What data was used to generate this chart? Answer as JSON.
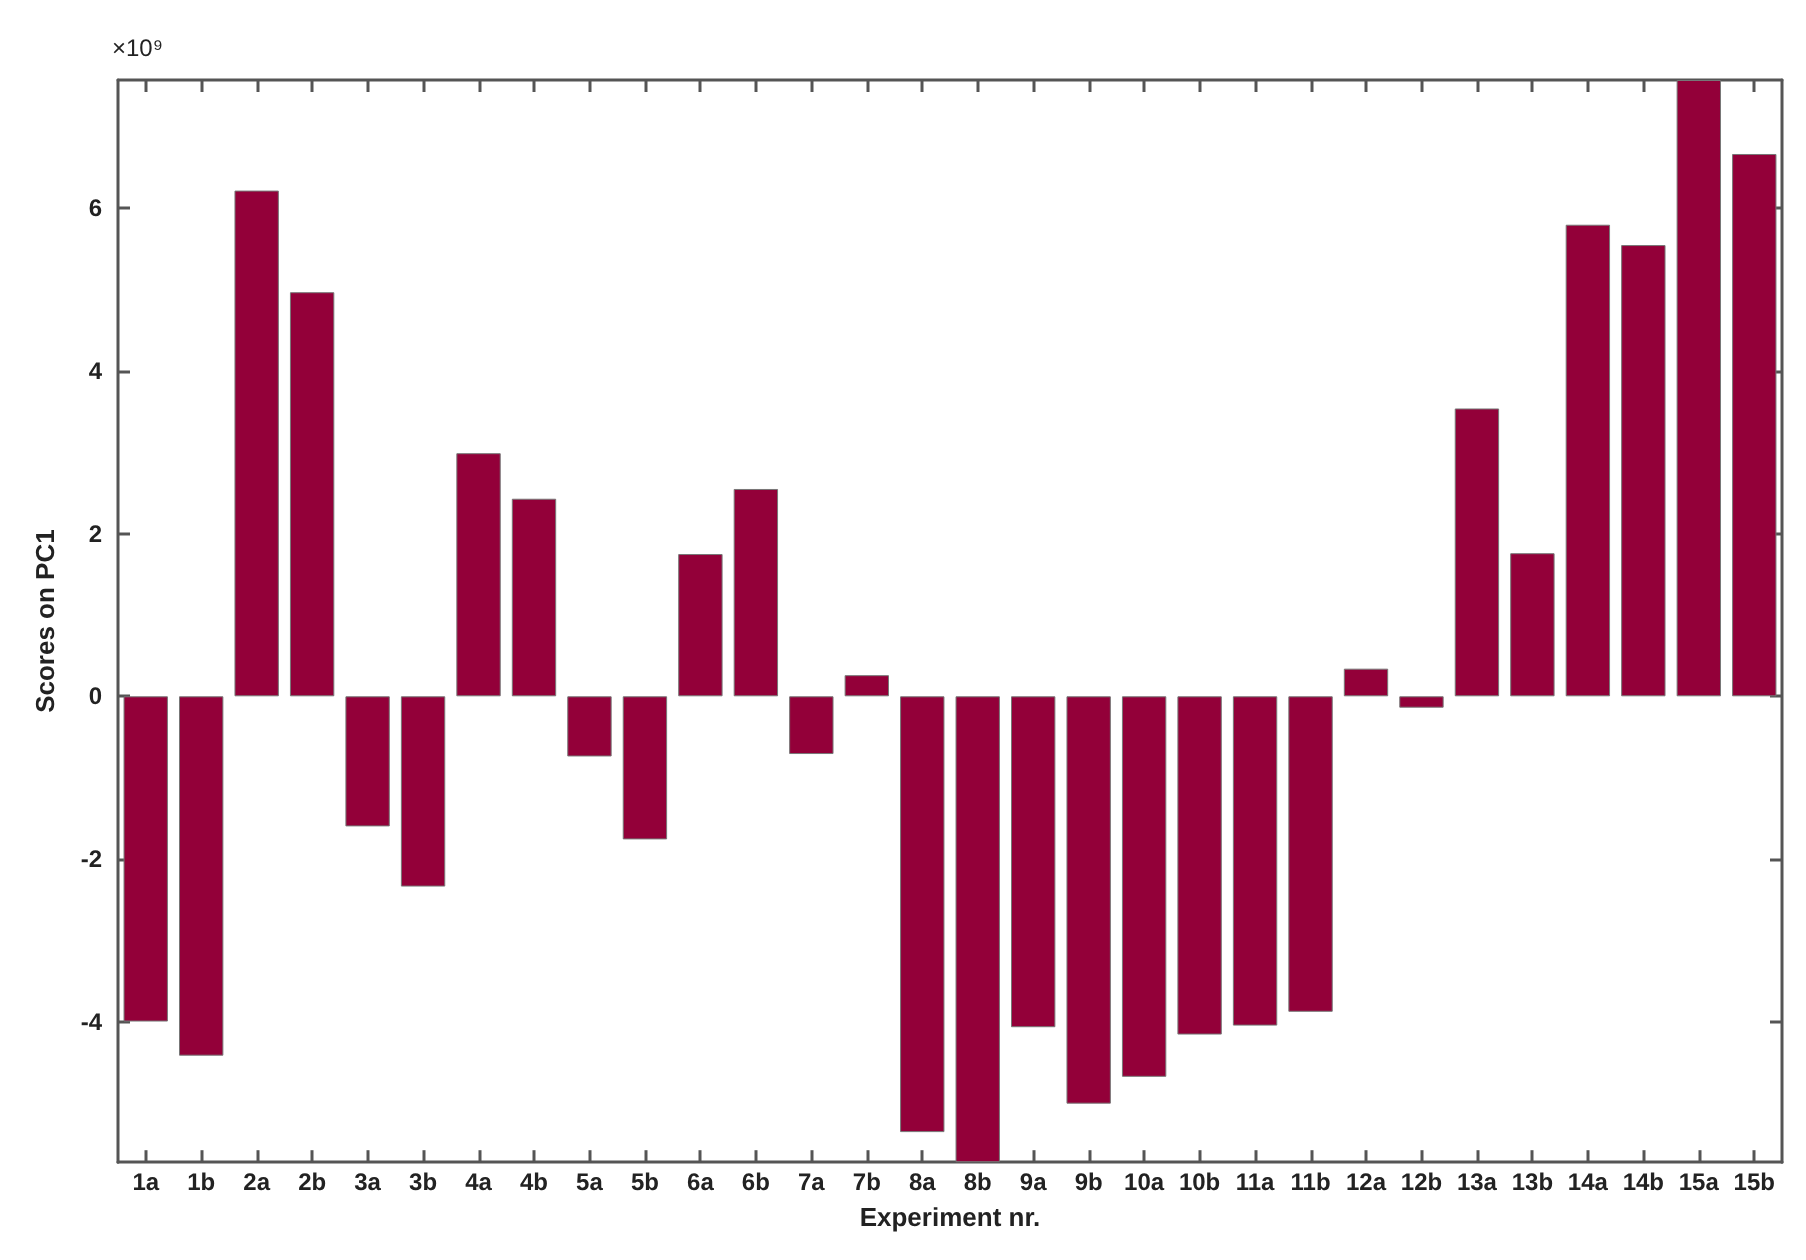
{
  "chart_data": {
    "type": "bar",
    "xlabel": "Experiment nr.",
    "ylabel": "Scores on PC1",
    "annotations": [
      "×10⁹"
    ],
    "categories": [
      "1a",
      "1b",
      "2a",
      "2b",
      "3a",
      "3b",
      "4a",
      "4b",
      "5a",
      "5b",
      "6a",
      "6b",
      "7a",
      "7b",
      "8a",
      "8b",
      "9a",
      "9b",
      "10a",
      "10b",
      "11a",
      "11b",
      "12a",
      "12b",
      "13a",
      "13b",
      "14a",
      "14b",
      "15a",
      "15b"
    ],
    "values": [
      -4.0,
      -4.42,
      6.22,
      4.97,
      -1.6,
      -2.34,
      2.99,
      2.43,
      -0.74,
      -1.76,
      1.75,
      2.55,
      -0.71,
      0.26,
      -5.36,
      -5.73,
      -4.07,
      -5.01,
      -4.68,
      -4.16,
      -4.05,
      -3.88,
      0.34,
      -0.14,
      3.54,
      1.76,
      5.8,
      5.55,
      7.58,
      6.67
    ],
    "color": "#930039",
    "ylim": [
      -5.73,
      7.58
    ],
    "yticks": [
      -4,
      -2,
      0,
      2,
      4,
      6
    ],
    "grid": false
  }
}
